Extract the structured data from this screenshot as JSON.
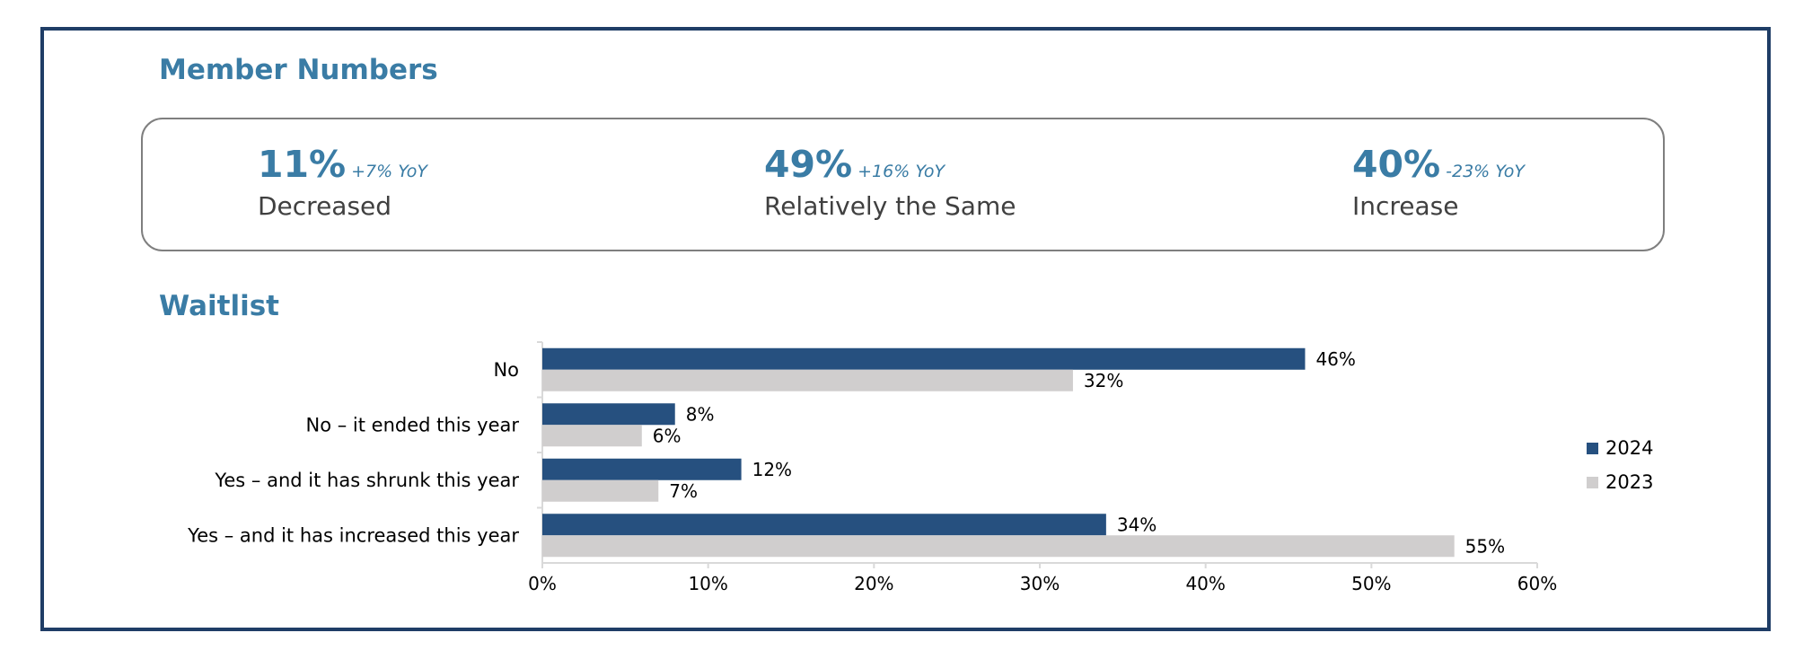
{
  "member_numbers": {
    "title": "Member Numbers",
    "stats": [
      {
        "pct": "11%",
        "yoy": "+7% YoY",
        "label": "Decreased"
      },
      {
        "pct": "49%",
        "yoy": "+16% YoY",
        "label": "Relatively the Same"
      },
      {
        "pct": "40%",
        "yoy": "-23% YoY",
        "label": "Increase"
      }
    ]
  },
  "waitlist": {
    "title": "Waitlist"
  },
  "colors": {
    "accent": "#3a7ca5",
    "frame": "#1f3d66",
    "series_2024": "#26507f",
    "series_2023": "#d0cece"
  },
  "chart_data": {
    "type": "bar",
    "orientation": "horizontal",
    "categories": [
      "No",
      "No – it ended this year",
      "Yes – and it has shrunk this year",
      "Yes – and it has increased this year"
    ],
    "series": [
      {
        "name": "2024",
        "values": [
          46,
          8,
          12,
          34
        ],
        "labels": [
          "46%",
          "8%",
          "12%",
          "34%"
        ],
        "color": "#26507f"
      },
      {
        "name": "2023",
        "values": [
          32,
          6,
          7,
          55
        ],
        "labels": [
          "32%",
          "6%",
          "7%",
          "55%"
        ],
        "color": "#d0cece"
      }
    ],
    "xlim": [
      0,
      60
    ],
    "xticks": [
      0,
      10,
      20,
      30,
      40,
      50,
      60
    ],
    "xtick_labels": [
      "0%",
      "10%",
      "20%",
      "30%",
      "40%",
      "50%",
      "60%"
    ],
    "grid": false,
    "legend_position": "right"
  }
}
